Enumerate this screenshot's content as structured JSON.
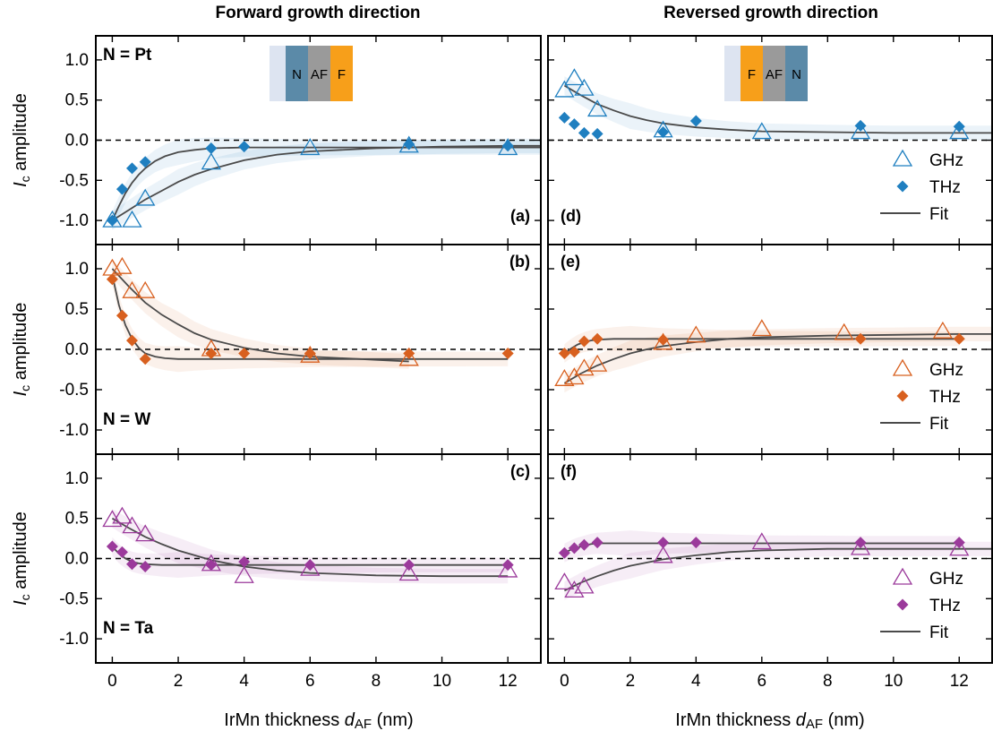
{
  "column_titles": [
    "Forward growth direction",
    "Reversed growth direction"
  ],
  "x_axis_label": {
    "prefix": "IrMn thickness ",
    "sym": "d",
    "sub": "AF",
    "suffix": " (nm)"
  },
  "y_axis_label": {
    "sym": "I",
    "sub": "c",
    "rest": " amplitude"
  },
  "colors": {
    "Pt": "#1f7fc0",
    "W": "#d8601f",
    "Ta": "#9b3a9b",
    "fit": "#4a4a4a",
    "zero_line": "#000000"
  },
  "stack_diagrams": {
    "forward": [
      "N",
      "AF",
      "F"
    ],
    "reversed": [
      "F",
      "AF",
      "N"
    ],
    "colors": {
      "substrate": "#dde4f1",
      "N": "#5b8aa8",
      "AF": "#9a9a9a",
      "F": "#f79f1a"
    }
  },
  "material_labels": {
    "Pt": "N = Pt",
    "W": "N = W",
    "Ta": "N = Ta"
  },
  "legend": {
    "ghz": "GHz",
    "thz": "THz",
    "fit": "Fit"
  },
  "chart_data": [
    {
      "type": "scatter",
      "panel": "(a)",
      "material": "Pt",
      "direction": "Forward",
      "xlim": [
        -0.5,
        13
      ],
      "ylim": [
        -1.3,
        1.3
      ],
      "grid": false,
      "xticks": [
        0,
        2,
        4,
        6,
        8,
        10,
        12
      ],
      "yticks": [
        1.0,
        0.5,
        0.0,
        -0.5,
        -1.0
      ],
      "series": [
        {
          "name": "GHz",
          "marker": "triangle",
          "x": [
            0,
            0.6,
            1,
            3,
            6,
            9,
            12
          ],
          "y": [
            -1.0,
            -1.0,
            -0.73,
            -0.28,
            -0.1,
            -0.07,
            -0.1
          ]
        },
        {
          "name": "THz",
          "marker": "diamond",
          "x": [
            0,
            0.3,
            0.6,
            1,
            3,
            4,
            9,
            12
          ],
          "y": [
            -1.0,
            -0.61,
            -0.35,
            -0.27,
            -0.1,
            -0.08,
            -0.05,
            -0.07
          ]
        },
        {
          "name": "Fit",
          "x": [
            0,
            0.2,
            0.4,
            0.6,
            0.8,
            1,
            1.3,
            1.6,
            2,
            2.5,
            3,
            4,
            6,
            9,
            12,
            13
          ],
          "y": [
            -1.0,
            -0.82,
            -0.66,
            -0.53,
            -0.43,
            -0.35,
            -0.26,
            -0.2,
            -0.15,
            -0.12,
            -0.1,
            -0.09,
            -0.09,
            -0.09,
            -0.09,
            -0.09
          ]
        },
        {
          "name": "Fit",
          "x": [
            0,
            0.5,
            1,
            1.5,
            2,
            2.5,
            3,
            4,
            5,
            6,
            8,
            10,
            12,
            13
          ],
          "y": [
            -1.0,
            -0.87,
            -0.74,
            -0.63,
            -0.52,
            -0.43,
            -0.36,
            -0.25,
            -0.18,
            -0.14,
            -0.1,
            -0.08,
            -0.07,
            -0.07
          ]
        }
      ]
    },
    {
      "type": "scatter",
      "panel": "(b)",
      "material": "W",
      "direction": "Forward",
      "xlim": [
        -0.5,
        13
      ],
      "ylim": [
        -1.3,
        1.3
      ],
      "grid": false,
      "xticks": [
        0,
        2,
        4,
        6,
        8,
        10,
        12
      ],
      "yticks": [
        1.0,
        0.5,
        0.0,
        -0.5,
        -1.0
      ],
      "series": [
        {
          "name": "GHz",
          "marker": "triangle",
          "x": [
            0,
            0.3,
            0.6,
            1,
            3,
            6,
            9
          ],
          "y": [
            1.0,
            1.02,
            0.72,
            0.72,
            0.0,
            -0.08,
            -0.12
          ]
        },
        {
          "name": "THz",
          "marker": "diamond",
          "x": [
            0,
            0.3,
            0.6,
            1,
            3,
            4,
            6,
            9,
            12
          ],
          "y": [
            0.87,
            0.42,
            0.11,
            -0.12,
            -0.05,
            -0.05,
            -0.05,
            -0.05,
            -0.05
          ]
        },
        {
          "name": "Fit",
          "x": [
            0,
            0.2,
            0.4,
            0.6,
            0.8,
            1,
            1.3,
            1.6,
            2,
            2.5,
            3,
            4,
            6,
            9,
            12
          ],
          "y": [
            0.92,
            0.55,
            0.3,
            0.13,
            0.02,
            -0.05,
            -0.09,
            -0.11,
            -0.12,
            -0.12,
            -0.12,
            -0.12,
            -0.12,
            -0.12,
            -0.12
          ]
        },
        {
          "name": "Fit",
          "x": [
            0,
            0.5,
            1,
            1.5,
            2,
            2.5,
            3,
            4,
            5,
            6,
            7,
            8,
            9
          ],
          "y": [
            1.0,
            0.78,
            0.58,
            0.43,
            0.31,
            0.2,
            0.12,
            0.02,
            -0.05,
            -0.09,
            -0.11,
            -0.13,
            -0.15
          ]
        }
      ]
    },
    {
      "type": "scatter",
      "panel": "(c)",
      "material": "Ta",
      "direction": "Forward",
      "xlim": [
        -0.5,
        13
      ],
      "ylim": [
        -1.3,
        1.3
      ],
      "grid": false,
      "xticks": [
        0,
        2,
        4,
        6,
        8,
        10,
        12
      ],
      "yticks": [
        1.0,
        0.5,
        0.0,
        -0.5,
        -1.0
      ],
      "series": [
        {
          "name": "GHz",
          "marker": "triangle",
          "x": [
            0,
            0.3,
            0.6,
            1,
            3,
            4,
            6,
            9,
            12
          ],
          "y": [
            0.48,
            0.52,
            0.4,
            0.3,
            -0.07,
            -0.22,
            -0.13,
            -0.19,
            -0.15
          ]
        },
        {
          "name": "THz",
          "marker": "diamond",
          "x": [
            0,
            0.3,
            0.6,
            1,
            3,
            4,
            6,
            9,
            12
          ],
          "y": [
            0.15,
            0.08,
            -0.07,
            -0.1,
            -0.08,
            -0.04,
            -0.08,
            -0.08,
            -0.08
          ]
        },
        {
          "name": "Fit",
          "x": [
            0,
            0.2,
            0.4,
            0.6,
            0.8,
            1,
            1.5,
            2,
            3,
            4,
            6,
            9,
            12
          ],
          "y": [
            0.15,
            0.06,
            0.0,
            -0.04,
            -0.06,
            -0.07,
            -0.08,
            -0.08,
            -0.08,
            -0.08,
            -0.08,
            -0.08,
            -0.08
          ]
        },
        {
          "name": "Fit",
          "x": [
            0,
            0.5,
            1,
            1.5,
            2,
            2.5,
            3,
            4,
            5,
            6,
            8,
            10,
            12
          ],
          "y": [
            0.5,
            0.38,
            0.27,
            0.18,
            0.1,
            0.04,
            -0.02,
            -0.1,
            -0.15,
            -0.18,
            -0.21,
            -0.22,
            -0.22
          ]
        }
      ]
    },
    {
      "type": "scatter",
      "panel": "(d)",
      "material": "Pt",
      "direction": "Reversed",
      "xlim": [
        -0.5,
        13
      ],
      "ylim": [
        -1.3,
        1.3
      ],
      "grid": false,
      "xticks": [
        0,
        2,
        4,
        6,
        8,
        10,
        12
      ],
      "yticks": [
        1.0,
        0.5,
        0.0,
        -0.5,
        -1.0
      ],
      "series": [
        {
          "name": "GHz",
          "marker": "triangle",
          "x": [
            0,
            0.3,
            0.6,
            1,
            3,
            6,
            9,
            12
          ],
          "y": [
            0.62,
            0.77,
            0.64,
            0.38,
            0.12,
            0.1,
            0.1,
            0.1
          ]
        },
        {
          "name": "THz",
          "marker": "diamond",
          "x": [
            0,
            0.3,
            0.6,
            1,
            3,
            4,
            9,
            12
          ],
          "y": [
            0.28,
            0.2,
            0.09,
            0.08,
            0.1,
            0.24,
            0.18,
            0.17
          ]
        },
        {
          "name": "Fit",
          "x": [
            0,
            0.5,
            1,
            1.5,
            2,
            2.5,
            3,
            4,
            5,
            6,
            8,
            10,
            12,
            13
          ],
          "y": [
            0.68,
            0.56,
            0.45,
            0.37,
            0.3,
            0.25,
            0.21,
            0.16,
            0.13,
            0.11,
            0.1,
            0.09,
            0.09,
            0.09
          ]
        }
      ]
    },
    {
      "type": "scatter",
      "panel": "(e)",
      "material": "W",
      "direction": "Reversed",
      "xlim": [
        -0.5,
        13
      ],
      "ylim": [
        -1.3,
        1.3
      ],
      "grid": false,
      "xticks": [
        0,
        2,
        4,
        6,
        8,
        10,
        12
      ],
      "yticks": [
        1.0,
        0.5,
        0.0,
        -0.5,
        -1.0
      ],
      "series": [
        {
          "name": "GHz",
          "marker": "triangle",
          "x": [
            0,
            0.3,
            0.6,
            1,
            3,
            4,
            6,
            8.5,
            11.5
          ],
          "y": [
            -0.37,
            -0.35,
            -0.24,
            -0.19,
            0.08,
            0.17,
            0.25,
            0.2,
            0.22
          ]
        },
        {
          "name": "THz",
          "marker": "diamond",
          "x": [
            0,
            0.3,
            0.6,
            1,
            3,
            9,
            12
          ],
          "y": [
            -0.05,
            -0.03,
            0.1,
            0.13,
            0.12,
            0.13,
            0.13
          ]
        },
        {
          "name": "Fit",
          "x": [
            0,
            0.2,
            0.4,
            0.6,
            0.8,
            1,
            1.5,
            2,
            3,
            6,
            9,
            12
          ],
          "y": [
            -0.05,
            0.01,
            0.06,
            0.09,
            0.11,
            0.12,
            0.13,
            0.13,
            0.13,
            0.13,
            0.13,
            0.13
          ]
        },
        {
          "name": "Fit",
          "x": [
            0,
            0.5,
            1,
            1.5,
            2,
            2.5,
            3,
            4,
            5,
            6,
            8,
            10,
            12,
            13
          ],
          "y": [
            -0.42,
            -0.3,
            -0.2,
            -0.12,
            -0.05,
            0.0,
            0.04,
            0.09,
            0.13,
            0.15,
            0.17,
            0.18,
            0.19,
            0.19
          ]
        }
      ]
    },
    {
      "type": "scatter",
      "panel": "(f)",
      "material": "Ta",
      "direction": "Reversed",
      "xlim": [
        -0.5,
        13
      ],
      "ylim": [
        -1.3,
        1.3
      ],
      "grid": false,
      "xticks": [
        0,
        2,
        4,
        6,
        8,
        10,
        12
      ],
      "yticks": [
        1.0,
        0.5,
        0.0,
        -0.5,
        -1.0
      ],
      "series": [
        {
          "name": "GHz",
          "marker": "triangle",
          "x": [
            0,
            0.3,
            0.6,
            3,
            6,
            9,
            12
          ],
          "y": [
            -0.3,
            -0.4,
            -0.35,
            0.03,
            0.2,
            0.13,
            0.12
          ]
        },
        {
          "name": "THz",
          "marker": "diamond",
          "x": [
            0,
            0.3,
            0.6,
            1,
            3,
            4,
            9,
            12
          ],
          "y": [
            0.07,
            0.13,
            0.17,
            0.2,
            0.2,
            0.2,
            0.2,
            0.2
          ]
        },
        {
          "name": "Fit",
          "x": [
            0,
            0.2,
            0.4,
            0.6,
            0.8,
            1,
            1.5,
            2,
            3,
            6,
            9,
            12
          ],
          "y": [
            0.07,
            0.11,
            0.14,
            0.16,
            0.18,
            0.19,
            0.19,
            0.19,
            0.19,
            0.19,
            0.19,
            0.19
          ]
        },
        {
          "name": "Fit",
          "x": [
            0,
            0.5,
            1,
            1.5,
            2,
            2.5,
            3,
            4,
            5,
            6,
            8,
            10,
            12,
            13
          ],
          "y": [
            -0.4,
            -0.3,
            -0.22,
            -0.15,
            -0.09,
            -0.05,
            -0.01,
            0.04,
            0.08,
            0.1,
            0.12,
            0.12,
            0.12,
            0.12
          ]
        }
      ]
    }
  ]
}
